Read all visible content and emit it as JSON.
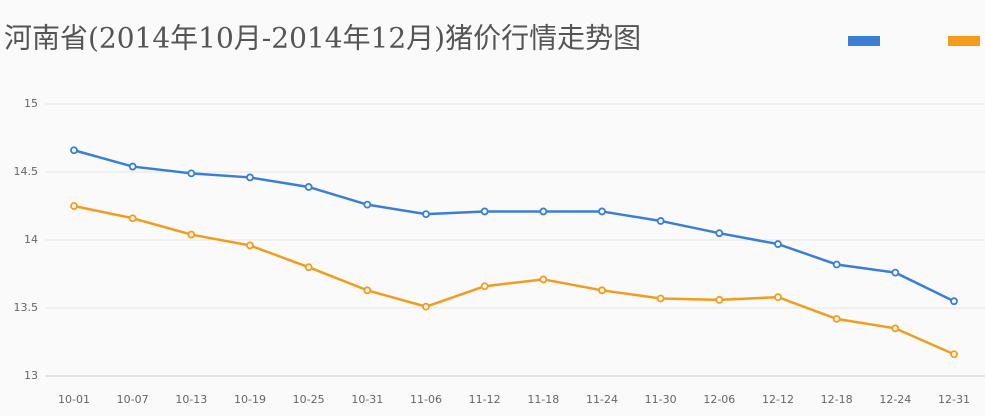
{
  "chart_data": {
    "type": "line",
    "title": "河南省(2014年10月-2014年12月)猪价行情走势图",
    "categories": [
      "10-01",
      "10-07",
      "10-13",
      "10-19",
      "10-25",
      "10-31",
      "11-06",
      "11-12",
      "11-18",
      "11-24",
      "11-30",
      "12-06",
      "12-12",
      "12-18",
      "12-24",
      "12-31"
    ],
    "series": [
      {
        "color": "#3a7fd5",
        "values": [
          14.66,
          14.54,
          14.49,
          14.46,
          14.39,
          14.26,
          14.19,
          14.21,
          14.21,
          14.21,
          14.14,
          14.05,
          13.97,
          13.82,
          13.76,
          13.55
        ]
      },
      {
        "color": "#f39c1c",
        "values": [
          14.25,
          14.16,
          14.04,
          13.96,
          13.8,
          13.63,
          13.51,
          13.66,
          13.71,
          13.63,
          13.57,
          13.56,
          13.58,
          13.42,
          13.35,
          13.16
        ]
      }
    ],
    "ylim": [
      13,
      15
    ],
    "yticks": [
      13,
      13.5,
      14,
      14.5,
      15
    ],
    "grid": true
  }
}
